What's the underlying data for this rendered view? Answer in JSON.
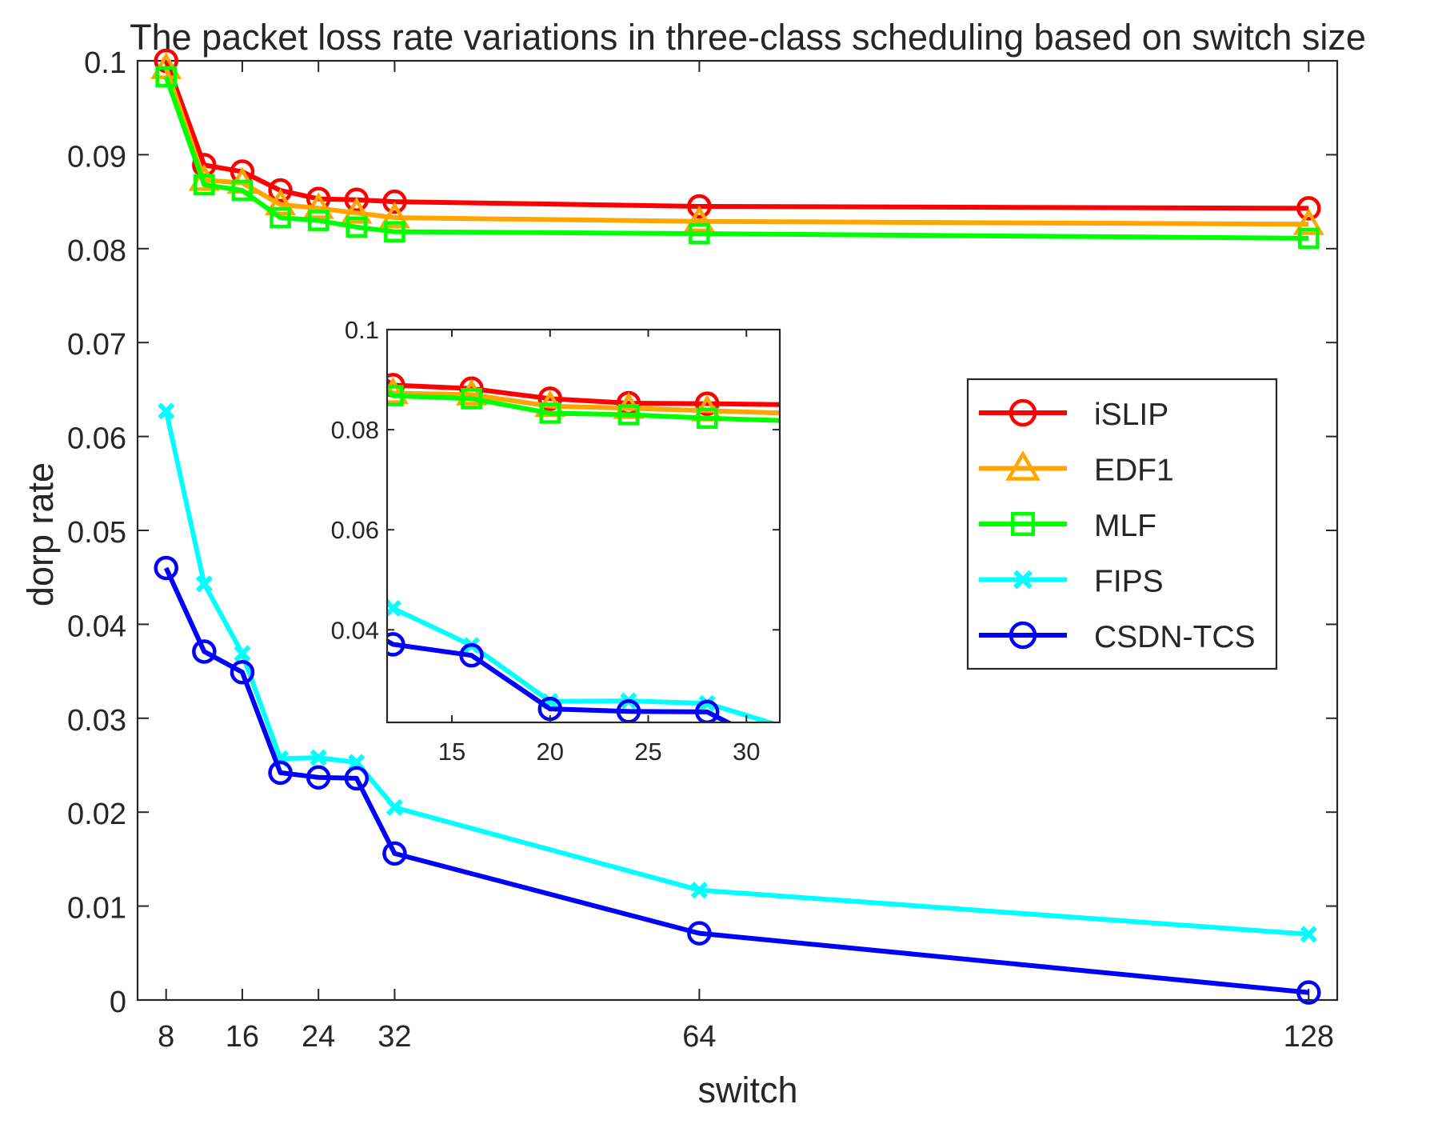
{
  "chart_data": {
    "type": "line",
    "title": "The packet loss rate variations in three-class scheduling based on switch size",
    "xlabel": "switch",
    "ylabel": "dorp rate",
    "x": [
      8,
      12,
      16,
      20,
      24,
      28,
      32,
      64,
      128
    ],
    "xticks": [
      8,
      16,
      24,
      32,
      64,
      128
    ],
    "xtick_labels": [
      "8",
      "16",
      "24",
      "32",
      "64",
      "128"
    ],
    "yticks": [
      0,
      0.01,
      0.02,
      0.03,
      0.04,
      0.05,
      0.06,
      0.07,
      0.08,
      0.09,
      0.1
    ],
    "ytick_labels": [
      "0",
      "0.01",
      "0.02",
      "0.03",
      "0.04",
      "0.05",
      "0.06",
      "0.07",
      "0.08",
      "0.09",
      "0.1"
    ],
    "ylim": [
      0,
      0.1
    ],
    "grid": false,
    "legend_position": "right",
    "series": [
      {
        "name": "iSLIP",
        "color": "#ff0000",
        "marker": "circle",
        "values": [
          0.1,
          0.0889,
          0.0882,
          0.0862,
          0.0853,
          0.0852,
          0.085,
          0.0845,
          0.0843
        ]
      },
      {
        "name": "EDF1",
        "color": "#ffa500",
        "marker": "triangle",
        "values": [
          0.0992,
          0.0873,
          0.087,
          0.0847,
          0.0843,
          0.0838,
          0.0833,
          0.0829,
          0.0826
        ]
      },
      {
        "name": "MLF",
        "color": "#00ff00",
        "marker": "square",
        "values": [
          0.0983,
          0.0868,
          0.0862,
          0.0833,
          0.083,
          0.0823,
          0.0818,
          0.0816,
          0.0811
        ]
      },
      {
        "name": "FIPS",
        "color": "#00ffff",
        "marker": "x",
        "values": [
          0.0627,
          0.0443,
          0.0369,
          0.0257,
          0.0258,
          0.0253,
          0.0205,
          0.0117,
          0.007
        ]
      },
      {
        "name": "CSDN-TCS",
        "color": "#0000ff",
        "marker": "circle",
        "values": [
          0.046,
          0.0371,
          0.0349,
          0.0242,
          0.0237,
          0.0236,
          0.0156,
          0.0071,
          0.0008
        ]
      }
    ],
    "inset": {
      "xlim": [
        11.7,
        31.7
      ],
      "ylim": [
        0.0215,
        0.1
      ],
      "xticks": [
        15,
        20,
        25,
        30
      ],
      "xtick_labels": [
        "15",
        "20",
        "25",
        "30"
      ],
      "yticks": [
        0.04,
        0.06,
        0.08,
        0.1
      ],
      "ytick_labels": [
        "0.04",
        "0.06",
        "0.08",
        "0.1"
      ]
    }
  }
}
